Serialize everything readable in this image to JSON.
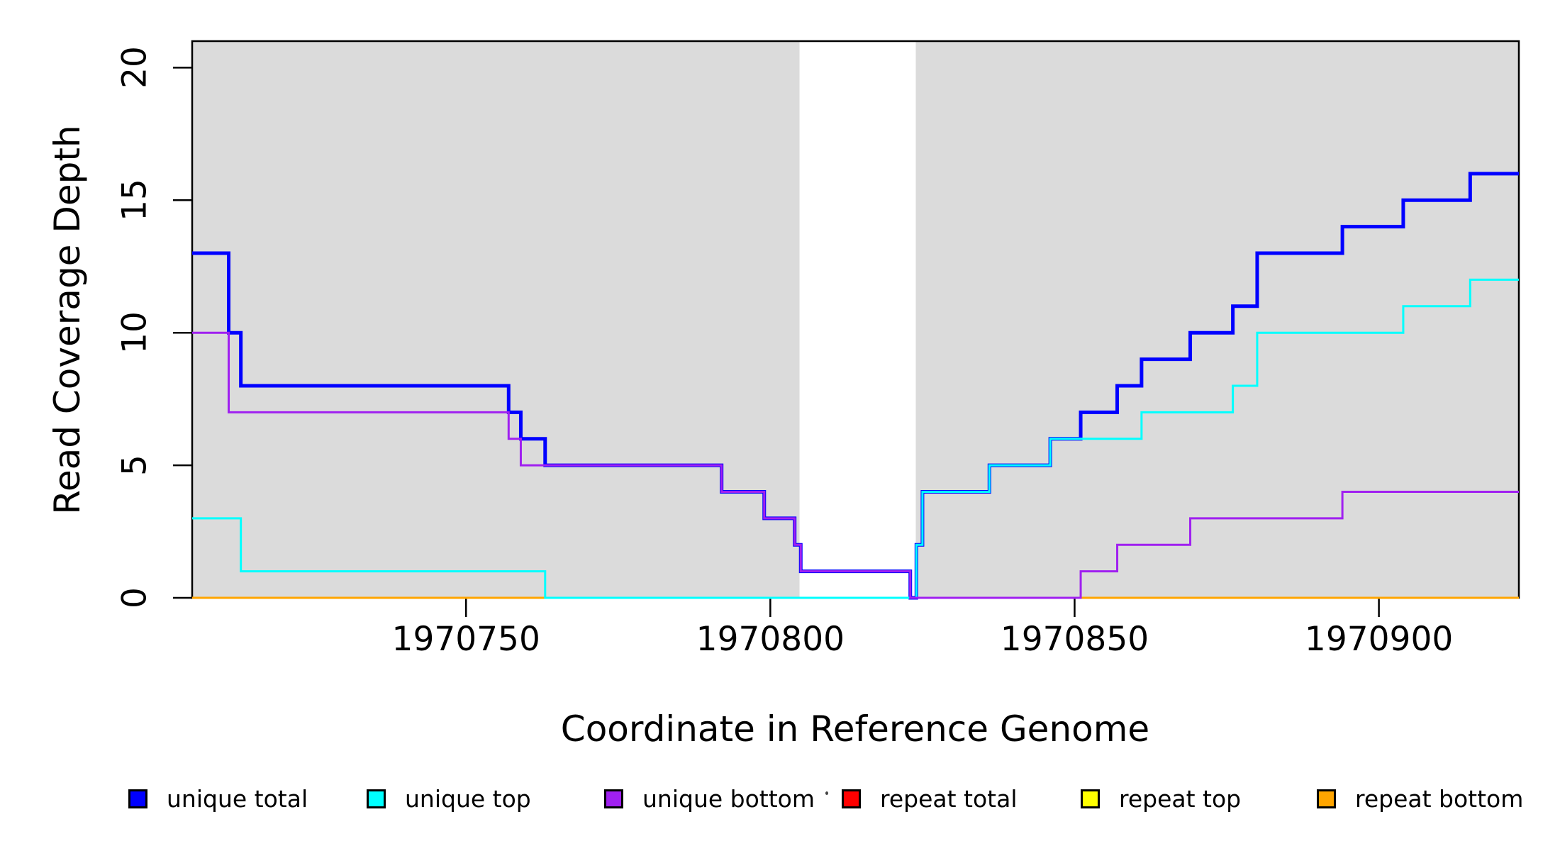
{
  "axes": {
    "x_label": "Coordinate in Reference Genome",
    "y_label": "Read Coverage Depth",
    "x_ticks": [
      "1970750",
      "1970800",
      "1970850",
      "1970900"
    ],
    "y_ticks": [
      "0",
      "5",
      "10",
      "15",
      "20"
    ]
  },
  "legend": {
    "items": [
      {
        "label": "unique total",
        "color": "#0000FF"
      },
      {
        "label": "unique top",
        "color": "#00FFFF"
      },
      {
        "label": "unique bottom",
        "color": "#A020F0"
      },
      {
        "label": "repeat total",
        "color": "#FF0000"
      },
      {
        "label": "repeat top",
        "color": "#FFFF00"
      },
      {
        "label": "repeat bottom",
        "color": "#FFA500"
      }
    ]
  },
  "chart_data": {
    "type": "line",
    "subtype": "step",
    "title": "",
    "xlabel": "Coordinate in Reference Genome",
    "ylabel": "Read Coverage Depth",
    "xlim": [
      1970705,
      1970923
    ],
    "ylim": [
      0,
      21
    ],
    "x_tick_values": [
      1970750,
      1970800,
      1970850,
      1970900
    ],
    "y_tick_values": [
      0,
      5,
      10,
      15,
      20
    ],
    "grid": false,
    "legend_position": "bottom",
    "plot_background": "#FFFFFF",
    "band_color": "#DBDBDB",
    "background_bands": [
      {
        "from": 1970705,
        "to": 1970804.8,
        "note": "gray covered region left of gap"
      },
      {
        "from": 1970823.9,
        "to": 1970923,
        "note": "gray covered region right of gap"
      }
    ],
    "series": [
      {
        "name": "repeat total",
        "color": "#FF0000",
        "width": 3,
        "segments": [
          [
            1970705,
            1970923,
            0
          ]
        ]
      },
      {
        "name": "repeat top",
        "color": "#FFFF00",
        "width": 3,
        "segments": [
          [
            1970705,
            1970923,
            0
          ]
        ]
      },
      {
        "name": "repeat bottom",
        "color": "#FFA500",
        "width": 3,
        "segments": [
          [
            1970705,
            1970851,
            0
          ],
          [
            1970851,
            1970923,
            0
          ]
        ]
      },
      {
        "name": "unique total",
        "color": "#0000FF",
        "width": 5,
        "segments": [
          [
            1970705,
            1970711,
            13
          ],
          [
            1970711,
            1970713,
            10
          ],
          [
            1970713,
            1970757,
            8
          ],
          [
            1970757,
            1970759,
            7
          ],
          [
            1970759,
            1970763,
            6
          ],
          [
            1970763,
            1970792,
            5
          ],
          [
            1970792,
            1970799,
            4
          ],
          [
            1970799,
            1970804,
            3
          ],
          [
            1970804,
            1970805,
            2
          ],
          [
            1970805,
            1970823,
            1
          ],
          [
            1970823,
            1970824,
            0
          ],
          [
            1970824,
            1970825,
            2
          ],
          [
            1970825,
            1970836,
            4
          ],
          [
            1970836,
            1970846,
            5
          ],
          [
            1970846,
            1970851,
            6
          ],
          [
            1970851,
            1970857,
            7
          ],
          [
            1970857,
            1970861,
            8
          ],
          [
            1970861,
            1970869,
            9
          ],
          [
            1970869,
            1970876,
            10
          ],
          [
            1970876,
            1970880,
            11
          ],
          [
            1970880,
            1970894,
            13
          ],
          [
            1970894,
            1970904,
            14
          ],
          [
            1970904,
            1970915,
            15
          ],
          [
            1970915,
            1970923,
            16
          ]
        ]
      },
      {
        "name": "unique top",
        "color": "#00FFFF",
        "width": 3,
        "segments": [
          [
            1970705,
            1970713,
            3
          ],
          [
            1970713,
            1970763,
            1
          ],
          [
            1970763,
            1970824,
            0
          ],
          [
            1970824,
            1970825,
            2
          ],
          [
            1970825,
            1970836,
            4
          ],
          [
            1970836,
            1970846,
            5
          ],
          [
            1970846,
            1970861,
            6
          ],
          [
            1970861,
            1970876,
            7
          ],
          [
            1970876,
            1970880,
            8
          ],
          [
            1970880,
            1970904,
            10
          ],
          [
            1970904,
            1970915,
            11
          ],
          [
            1970915,
            1970923,
            12
          ]
        ]
      },
      {
        "name": "unique bottom",
        "color": "#A020F0",
        "width": 3,
        "segments": [
          [
            1970705,
            1970711,
            10
          ],
          [
            1970711,
            1970757,
            7
          ],
          [
            1970757,
            1970759,
            6
          ],
          [
            1970759,
            1970792,
            5
          ],
          [
            1970792,
            1970799,
            4
          ],
          [
            1970799,
            1970804,
            3
          ],
          [
            1970804,
            1970805,
            2
          ],
          [
            1970805,
            1970823,
            1
          ],
          [
            1970823,
            1970851,
            0
          ],
          [
            1970851,
            1970857,
            1
          ],
          [
            1970857,
            1970869,
            2
          ],
          [
            1970869,
            1970894,
            3
          ],
          [
            1970894,
            1970923,
            4
          ]
        ]
      }
    ]
  }
}
